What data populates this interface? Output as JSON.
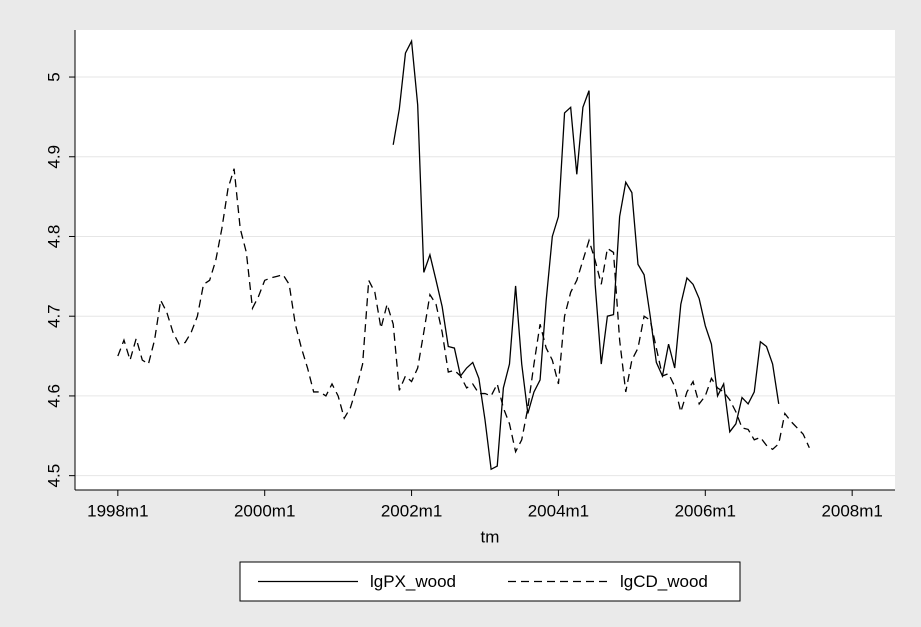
{
  "chart_data": {
    "type": "line",
    "x_label": "tm",
    "x": [
      456,
      457,
      458,
      459,
      460,
      461,
      462,
      463,
      464,
      465,
      466,
      467,
      468,
      469,
      470,
      471,
      472,
      473,
      474,
      475,
      476,
      477,
      478,
      479,
      480,
      481,
      482,
      483,
      484,
      485,
      486,
      487,
      488,
      489,
      490,
      491,
      492,
      493,
      494,
      495,
      496,
      497,
      498,
      499,
      500,
      501,
      502,
      503,
      504,
      505,
      506,
      507,
      508,
      509,
      510,
      511,
      512,
      513,
      514,
      515,
      516,
      517,
      518,
      519,
      520,
      521,
      522,
      523,
      524,
      525,
      526,
      527,
      528,
      529,
      530,
      531,
      532,
      533,
      534,
      535,
      536,
      537,
      538,
      539,
      540,
      541,
      542,
      543,
      544,
      545,
      546,
      547,
      548,
      549,
      550,
      551,
      552,
      553,
      554,
      555,
      556,
      557,
      558,
      559,
      560,
      561,
      562,
      563,
      564,
      565,
      566,
      567,
      568,
      569
    ],
    "series": [
      {
        "name": "lgPX_wood",
        "color": "#000000",
        "line_style": "solid",
        "values": [
          null,
          null,
          null,
          null,
          null,
          null,
          null,
          null,
          null,
          null,
          null,
          null,
          null,
          null,
          null,
          null,
          null,
          null,
          null,
          null,
          null,
          null,
          null,
          null,
          null,
          null,
          null,
          null,
          null,
          null,
          null,
          null,
          null,
          null,
          null,
          null,
          null,
          null,
          null,
          null,
          null,
          null,
          null,
          null,
          null,
          4.915,
          4.96,
          5.03,
          5.045,
          4.965,
          4.755,
          4.777,
          4.745,
          4.712,
          4.662,
          4.66,
          4.625,
          4.635,
          4.642,
          4.622,
          4.57,
          4.508,
          4.512,
          4.61,
          4.64,
          4.738,
          4.64,
          4.578,
          4.605,
          4.62,
          4.72,
          4.8,
          4.825,
          4.955,
          4.962,
          4.878,
          4.962,
          4.983,
          4.74,
          4.64,
          4.7,
          4.702,
          4.825,
          4.868,
          4.855,
          4.765,
          4.752,
          4.7,
          4.642,
          4.625,
          4.665,
          4.635,
          4.715,
          4.748,
          4.74,
          4.722,
          4.688,
          4.665,
          4.6,
          4.615,
          4.555,
          4.565,
          4.598,
          4.59,
          4.605,
          4.668,
          4.662,
          4.64,
          4.59,
          null,
          null,
          null,
          null,
          null
        ]
      },
      {
        "name": "lgCD_wood",
        "color": "#000000",
        "line_style": "dashed",
        "values": [
          4.65,
          4.67,
          4.645,
          4.672,
          4.645,
          4.64,
          4.67,
          4.72,
          4.705,
          4.68,
          4.665,
          4.667,
          4.68,
          4.7,
          4.74,
          4.745,
          4.77,
          4.81,
          4.86,
          4.885,
          4.81,
          4.78,
          4.71,
          4.725,
          4.745,
          4.748,
          4.75,
          4.752,
          4.74,
          4.69,
          4.66,
          4.635,
          4.605,
          4.605,
          4.6,
          4.615,
          4.6,
          4.572,
          4.585,
          4.61,
          4.64,
          4.745,
          4.73,
          4.685,
          4.715,
          4.69,
          4.607,
          4.625,
          4.618,
          4.635,
          4.68,
          4.727,
          4.715,
          4.68,
          4.63,
          4.632,
          4.625,
          4.61,
          4.615,
          4.603,
          4.603,
          4.6,
          4.615,
          4.585,
          4.565,
          4.53,
          4.545,
          4.585,
          4.64,
          4.69,
          4.66,
          4.645,
          4.615,
          4.7,
          4.73,
          4.745,
          4.77,
          4.795,
          4.77,
          4.74,
          4.785,
          4.78,
          4.67,
          4.605,
          4.645,
          4.66,
          4.7,
          4.695,
          4.66,
          4.625,
          4.628,
          4.612,
          4.58,
          4.605,
          4.618,
          4.59,
          4.6,
          4.622,
          4.61,
          4.605,
          4.595,
          4.58,
          4.56,
          4.558,
          4.545,
          4.548,
          4.538,
          4.533,
          4.54,
          4.578,
          4.568,
          4.56,
          4.552,
          4.535
        ]
      }
    ],
    "xlim": [
      449,
      583
    ],
    "xticks": [
      {
        "value": 456,
        "label": "1998m1"
      },
      {
        "value": 480,
        "label": "2000m1"
      },
      {
        "value": 504,
        "label": "2002m1"
      },
      {
        "value": 528,
        "label": "2004m1"
      },
      {
        "value": 552,
        "label": "2006m1"
      },
      {
        "value": 576,
        "label": "2008m1"
      }
    ],
    "ylim": [
      4.482,
      5.059
    ],
    "yticks": [
      4.5,
      4.6,
      4.7,
      4.8,
      4.9,
      5
    ],
    "grid": true,
    "legend": "bottom"
  }
}
